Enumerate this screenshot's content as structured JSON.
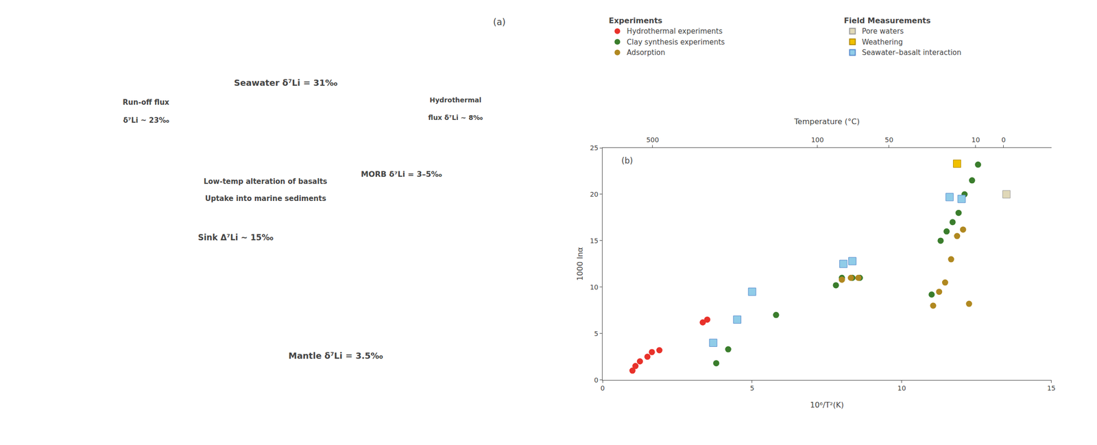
{
  "chart_data": [
    {
      "type": "diagram",
      "annotations": [
        "Run-off flux",
        "δ⁷Li ~ 23‰",
        "Seawater δ⁷Li = 31‰",
        "Hydrothermal",
        "flux δ⁷Li ~ 8‰",
        "MORB δ⁷Li = 3–5‰",
        "Low-temp alteration of basalts",
        "Uptake into marine sediments",
        "Sink Δ⁷Li ~ 15‰",
        "Mantle δ⁷Li = 3.5‰",
        "(a)"
      ]
    },
    {
      "type": "scatter",
      "xlabel": "10⁶/T²(K)",
      "ylabel": "1000 lnα",
      "x2label": "Temperature (°C)",
      "xlim": [
        0,
        15
      ],
      "ylim": [
        0,
        25
      ],
      "x2lim": [
        0,
        15
      ],
      "xticks": [
        0,
        5,
        10,
        15
      ],
      "yticks": [
        0,
        5,
        10,
        15,
        20,
        25
      ],
      "x2ticks": [
        {
          "value": 1.6729,
          "label": "500"
        },
        {
          "value": 7.1818,
          "label": "100"
        },
        {
          "value": 9.5762,
          "label": "50"
        },
        {
          "value": 12.4729,
          "label": "10"
        },
        {
          "value": 13.4029,
          "label": "0"
        }
      ],
      "grid": false,
      "annotations": [
        "(b)"
      ],
      "series": [
        {
          "name": "Hydrothermal experiments",
          "group": "Experiments",
          "color": "#e8312a",
          "marker": "circle",
          "x": [
            1.0,
            1.1,
            1.25,
            1.5,
            1.65,
            1.9,
            3.35,
            3.5
          ],
          "values": [
            1.0,
            1.5,
            2.0,
            2.5,
            3.0,
            3.2,
            6.2,
            6.5
          ]
        },
        {
          "name": "Clay synthesis experiments",
          "group": "Experiments",
          "color": "#3a7d2c",
          "marker": "circle",
          "x": [
            3.8,
            4.2,
            5.8,
            7.8,
            8.0,
            8.35,
            8.6,
            11.0,
            11.3,
            11.5,
            11.7,
            11.9,
            12.1,
            12.35,
            12.55
          ],
          "values": [
            1.8,
            3.3,
            7.0,
            10.2,
            11.0,
            11.0,
            11.0,
            9.2,
            15.0,
            16.0,
            17.0,
            18.0,
            20.0,
            21.5,
            23.2
          ]
        },
        {
          "name": "Adsorption",
          "group": "Experiments",
          "color": "#b08820",
          "marker": "circle",
          "x": [
            8.0,
            8.3,
            8.55,
            11.05,
            11.25,
            11.45,
            11.65,
            11.85,
            12.05,
            12.25
          ],
          "values": [
            10.8,
            11.0,
            11.0,
            8.0,
            9.5,
            10.5,
            13.0,
            15.5,
            16.2,
            8.2
          ]
        },
        {
          "name": "Pore waters",
          "group": "Field Measurements",
          "color": "#e0d8b8",
          "edgecolor": "#999999",
          "marker": "square",
          "x": [
            13.5
          ],
          "values": [
            20.0
          ]
        },
        {
          "name": "Weathering",
          "group": "Field Measurements",
          "color": "#f0c000",
          "edgecolor": "#b08800",
          "marker": "square",
          "x": [
            11.85
          ],
          "values": [
            23.3
          ]
        },
        {
          "name": "Seawater–basalt interaction",
          "group": "Field Measurements",
          "color": "#90cce8",
          "edgecolor": "#5588cc",
          "marker": "square",
          "x": [
            3.7,
            4.5,
            5.0,
            8.05,
            8.35,
            11.6,
            12.0
          ],
          "values": [
            4.0,
            6.5,
            9.5,
            12.5,
            12.8,
            19.7,
            19.5
          ]
        }
      ]
    }
  ]
}
